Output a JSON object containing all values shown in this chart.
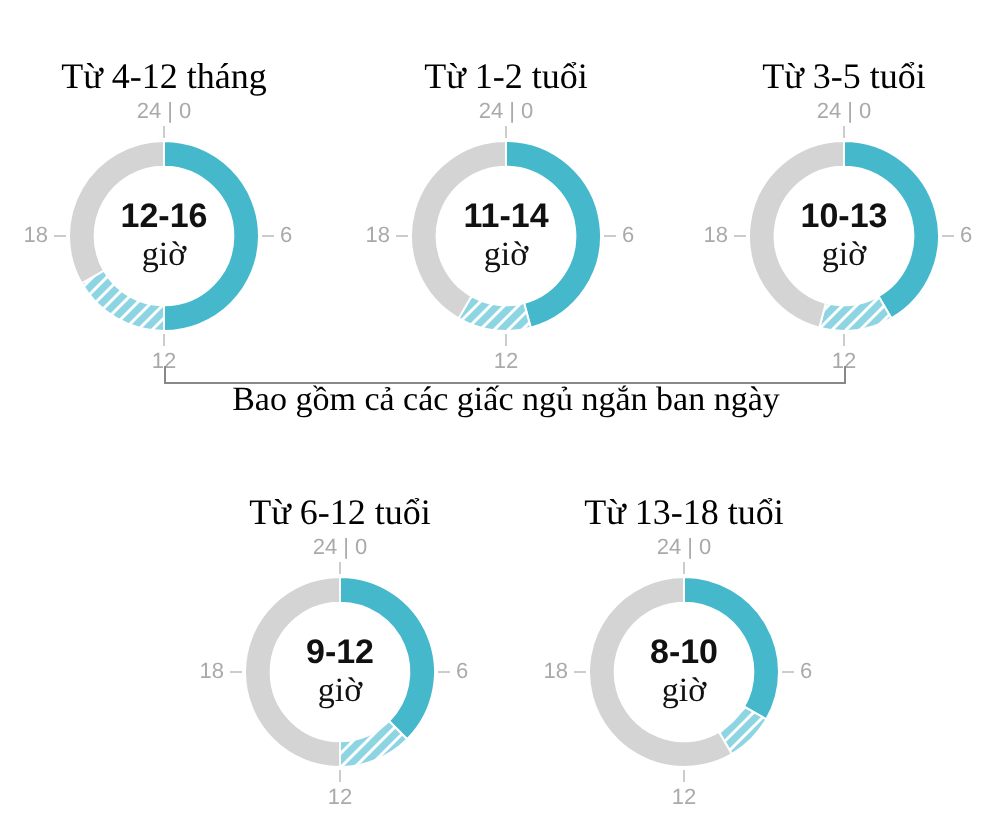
{
  "chart_data": [
    {
      "type": "donut",
      "title": "Từ 4-12 tháng",
      "categories": [
        null,
        null,
        null
      ],
      "values": [
        50,
        16.7,
        33.3
      ],
      "colors": [
        "#45b8cc",
        "#8dd5e2",
        "#d4d4d4"
      ],
      "annotations": [
        "12-16",
        "giờ",
        "24 | 0",
        "6",
        "12",
        "18"
      ]
    },
    {
      "type": "donut",
      "title": "Từ 1-2 tuổi",
      "categories": [
        null,
        null,
        null
      ],
      "values": [
        45.8,
        12.5,
        41.7
      ],
      "colors": [
        "#45b8cc",
        "#8dd5e2",
        "#d4d4d4"
      ],
      "annotations": [
        "11-14",
        "giờ",
        "24 | 0",
        "6",
        "12",
        "18"
      ]
    },
    {
      "type": "donut",
      "title": "Từ 3-5 tuổi",
      "categories": [
        null,
        null,
        null
      ],
      "values": [
        41.7,
        12.5,
        45.8
      ],
      "colors": [
        "#45b8cc",
        "#8dd5e2",
        "#d4d4d4"
      ],
      "annotations": [
        "10-13",
        "giờ",
        "24 | 0",
        "6",
        "12",
        "18"
      ]
    },
    {
      "type": "donut",
      "title": "Từ 6-12 tuổi",
      "categories": [
        null,
        null,
        null
      ],
      "values": [
        37.5,
        12.5,
        50
      ],
      "colors": [
        "#45b8cc",
        "#8dd5e2",
        "#d4d4d4"
      ],
      "annotations": [
        "9-12",
        "giờ",
        "24 | 0",
        "6",
        "12",
        "18"
      ]
    },
    {
      "type": "donut",
      "title": "Từ 13-18 tuổi",
      "categories": [
        null,
        null,
        null
      ],
      "values": [
        33.3,
        8.3,
        58.4
      ],
      "colors": [
        "#45b8cc",
        "#8dd5e2",
        "#d4d4d4"
      ],
      "annotations": [
        "8-10",
        "giờ",
        "24 | 0",
        "6",
        "12",
        "18"
      ]
    },
    {
      "type": "other",
      "annotations": [
        "Bao gồm cả các giấc ngủ ngắn ban ngày"
      ]
    }
  ]
}
